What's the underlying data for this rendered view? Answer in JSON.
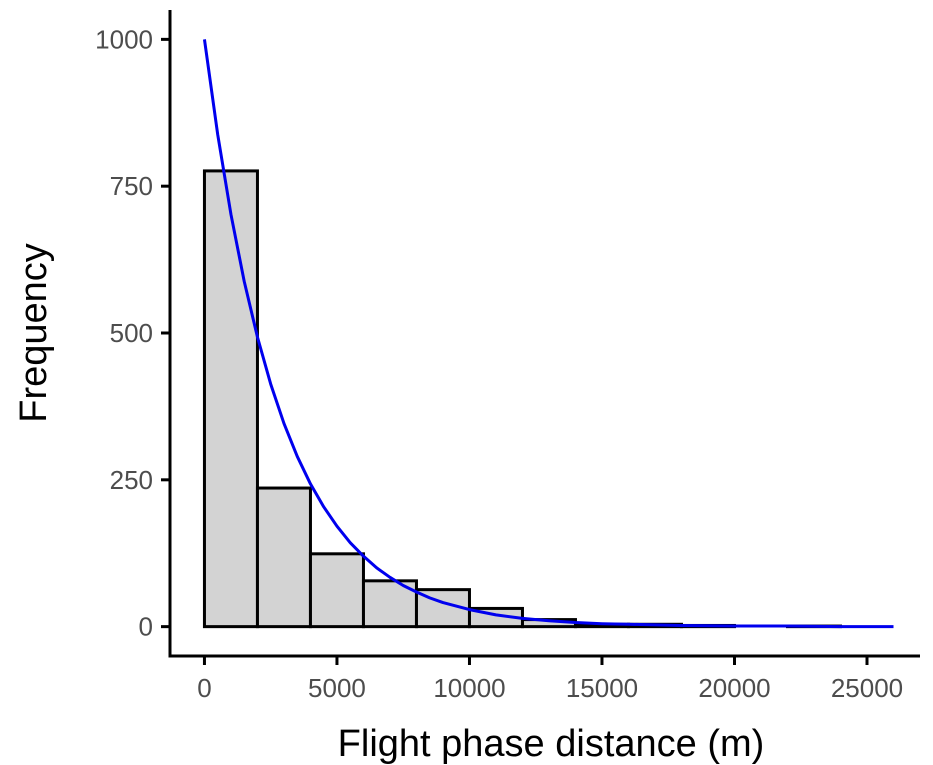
{
  "colors": {
    "bar_fill": "#d3d3d3",
    "bar_stroke": "#000000",
    "curve": "#0000ee",
    "axis": "#000000",
    "tick_text": "#4d4d4d"
  },
  "chart_data": {
    "type": "bar",
    "title": "",
    "xlabel": "Flight phase distance (m)",
    "ylabel": "Frequency",
    "xlim": [
      -1300,
      27000
    ],
    "ylim": [
      -50,
      1050
    ],
    "x_ticks": [
      0,
      5000,
      10000,
      15000,
      20000,
      25000
    ],
    "x_tick_labels": [
      "0",
      "5000",
      "10000",
      "15000",
      "20000",
      "25000"
    ],
    "y_ticks": [
      0,
      250,
      500,
      750,
      1000
    ],
    "y_tick_labels": [
      "0",
      "250",
      "500",
      "750",
      "1000"
    ],
    "grid": false,
    "bins": [
      {
        "x0": 0,
        "x1": 2000,
        "value": 776
      },
      {
        "x0": 2000,
        "x1": 4000,
        "value": 236
      },
      {
        "x0": 4000,
        "x1": 6000,
        "value": 124
      },
      {
        "x0": 6000,
        "x1": 8000,
        "value": 78
      },
      {
        "x0": 8000,
        "x1": 10000,
        "value": 63
      },
      {
        "x0": 10000,
        "x1": 12000,
        "value": 31
      },
      {
        "x0": 12000,
        "x1": 14000,
        "value": 12
      },
      {
        "x0": 14000,
        "x1": 16000,
        "value": 4
      },
      {
        "x0": 16000,
        "x1": 18000,
        "value": 4
      },
      {
        "x0": 18000,
        "x1": 20000,
        "value": 2
      },
      {
        "x0": 20000,
        "x1": 22000,
        "value": 0
      },
      {
        "x0": 22000,
        "x1": 24000,
        "value": 1
      },
      {
        "x0": 24000,
        "x1": 26000,
        "value": 0
      }
    ],
    "curve": {
      "type": "exponential",
      "x": [
        0,
        500,
        1000,
        1500,
        2000,
        2500,
        3000,
        3500,
        4000,
        4500,
        5000,
        5500,
        6000,
        6500,
        7000,
        7500,
        8000,
        8500,
        9000,
        9500,
        10000,
        11000,
        12000,
        13000,
        14000,
        15000,
        16000,
        18000,
        20000,
        22000,
        24000,
        26000
      ],
      "y": [
        1000,
        838,
        702,
        588,
        493,
        413,
        346,
        290,
        243,
        204,
        171,
        143,
        120,
        100,
        84,
        70,
        59,
        49,
        41,
        35,
        29,
        20,
        14,
        10,
        7,
        5,
        4,
        2,
        1,
        1,
        0,
        0
      ]
    }
  }
}
